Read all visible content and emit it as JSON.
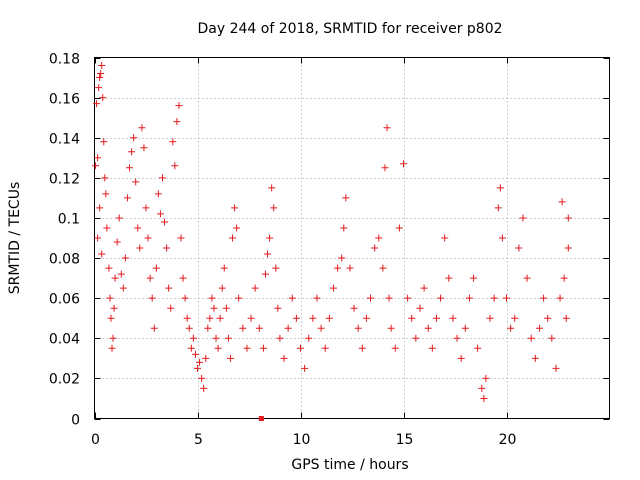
{
  "chart_data": {
    "type": "scatter",
    "title": "Day 244 of 2018, SRMTID for receiver p802",
    "xlabel": "GPS time / hours",
    "ylabel": "SRMTID / TECUs",
    "xlim": [
      0,
      25
    ],
    "ylim": [
      0,
      0.18
    ],
    "xticks": [
      0,
      5,
      10,
      15,
      20
    ],
    "xtick_labels": [
      "0",
      "5",
      "10",
      "15",
      "20"
    ],
    "yticks": [
      0,
      0.02,
      0.04,
      0.06,
      0.08,
      0.1,
      0.12,
      0.14,
      0.16,
      0.18
    ],
    "ytick_labels": [
      "0",
      "0.02",
      "0.04",
      "0.06",
      "0.08",
      "0.1",
      "0.12",
      "0.14",
      "0.16",
      "0.18"
    ],
    "grid": true,
    "legend": "none",
    "marker": "+",
    "marker_color": "#e41a1c",
    "series": [
      {
        "name": "SRMTID",
        "points": [
          [
            0.05,
            0.126
          ],
          [
            0.1,
            0.157
          ],
          [
            0.15,
            0.13
          ],
          [
            0.2,
            0.165
          ],
          [
            0.25,
            0.17
          ],
          [
            0.3,
            0.172
          ],
          [
            0.35,
            0.176
          ],
          [
            0.4,
            0.16
          ],
          [
            0.45,
            0.138
          ],
          [
            0.15,
            0.09
          ],
          [
            0.25,
            0.105
          ],
          [
            0.35,
            0.082
          ],
          [
            0.5,
            0.12
          ],
          [
            0.55,
            0.112
          ],
          [
            0.6,
            0.095
          ],
          [
            0.7,
            0.075
          ],
          [
            0.75,
            0.06
          ],
          [
            0.8,
            0.05
          ],
          [
            0.85,
            0.035
          ],
          [
            0.9,
            0.04
          ],
          [
            0.95,
            0.055
          ],
          [
            1.0,
            0.07
          ],
          [
            1.1,
            0.088
          ],
          [
            1.2,
            0.1
          ],
          [
            1.3,
            0.072
          ],
          [
            1.4,
            0.065
          ],
          [
            1.5,
            0.08
          ],
          [
            1.6,
            0.11
          ],
          [
            1.7,
            0.125
          ],
          [
            1.8,
            0.133
          ],
          [
            1.9,
            0.14
          ],
          [
            2.0,
            0.118
          ],
          [
            2.1,
            0.095
          ],
          [
            2.2,
            0.085
          ],
          [
            2.3,
            0.145
          ],
          [
            2.4,
            0.135
          ],
          [
            2.5,
            0.105
          ],
          [
            2.6,
            0.09
          ],
          [
            2.7,
            0.07
          ],
          [
            2.8,
            0.06
          ],
          [
            2.9,
            0.045
          ],
          [
            3.0,
            0.075
          ],
          [
            3.1,
            0.112
          ],
          [
            3.2,
            0.102
          ],
          [
            3.3,
            0.12
          ],
          [
            3.4,
            0.098
          ],
          [
            3.5,
            0.085
          ],
          [
            3.6,
            0.065
          ],
          [
            3.7,
            0.055
          ],
          [
            3.8,
            0.138
          ],
          [
            3.9,
            0.126
          ],
          [
            4.0,
            0.148
          ],
          [
            4.1,
            0.156
          ],
          [
            4.2,
            0.09
          ],
          [
            4.3,
            0.07
          ],
          [
            4.4,
            0.06
          ],
          [
            4.5,
            0.05
          ],
          [
            4.6,
            0.045
          ],
          [
            4.7,
            0.035
          ],
          [
            4.8,
            0.04
          ],
          [
            4.9,
            0.032
          ],
          [
            5.0,
            0.025
          ],
          [
            5.1,
            0.028
          ],
          [
            5.2,
            0.02
          ],
          [
            5.3,
            0.015
          ],
          [
            5.4,
            0.03
          ],
          [
            5.5,
            0.045
          ],
          [
            5.6,
            0.05
          ],
          [
            5.7,
            0.06
          ],
          [
            5.8,
            0.055
          ],
          [
            5.9,
            0.04
          ],
          [
            6.0,
            0.035
          ],
          [
            6.1,
            0.05
          ],
          [
            6.2,
            0.065
          ],
          [
            6.3,
            0.075
          ],
          [
            6.4,
            0.055
          ],
          [
            6.5,
            0.04
          ],
          [
            6.6,
            0.03
          ],
          [
            6.7,
            0.09
          ],
          [
            6.8,
            0.105
          ],
          [
            6.9,
            0.095
          ],
          [
            7.0,
            0.06
          ],
          [
            7.2,
            0.045
          ],
          [
            7.4,
            0.035
          ],
          [
            7.6,
            0.05
          ],
          [
            7.8,
            0.065
          ],
          [
            8.0,
            0.045
          ],
          [
            8.2,
            0.035
          ],
          [
            8.3,
            0.072
          ],
          [
            8.4,
            0.082
          ],
          [
            8.5,
            0.09
          ],
          [
            8.6,
            0.115
          ],
          [
            8.7,
            0.105
          ],
          [
            8.8,
            0.075
          ],
          [
            8.9,
            0.055
          ],
          [
            9.0,
            0.04
          ],
          [
            9.2,
            0.03
          ],
          [
            9.4,
            0.045
          ],
          [
            9.6,
            0.06
          ],
          [
            9.8,
            0.05
          ],
          [
            10.0,
            0.035
          ],
          [
            10.2,
            0.025
          ],
          [
            10.4,
            0.04
          ],
          [
            10.6,
            0.05
          ],
          [
            10.8,
            0.06
          ],
          [
            11.0,
            0.045
          ],
          [
            11.2,
            0.035
          ],
          [
            11.4,
            0.05
          ],
          [
            11.6,
            0.065
          ],
          [
            11.8,
            0.075
          ],
          [
            12.0,
            0.08
          ],
          [
            12.1,
            0.095
          ],
          [
            12.2,
            0.11
          ],
          [
            12.4,
            0.075
          ],
          [
            12.6,
            0.055
          ],
          [
            12.8,
            0.045
          ],
          [
            13.0,
            0.035
          ],
          [
            13.2,
            0.05
          ],
          [
            13.4,
            0.06
          ],
          [
            13.6,
            0.085
          ],
          [
            13.8,
            0.09
          ],
          [
            14.0,
            0.075
          ],
          [
            14.1,
            0.125
          ],
          [
            14.2,
            0.145
          ],
          [
            14.3,
            0.06
          ],
          [
            14.4,
            0.045
          ],
          [
            14.6,
            0.035
          ],
          [
            14.8,
            0.095
          ],
          [
            15.0,
            0.127
          ],
          [
            15.2,
            0.06
          ],
          [
            15.4,
            0.05
          ],
          [
            15.6,
            0.04
          ],
          [
            15.8,
            0.055
          ],
          [
            16.0,
            0.065
          ],
          [
            16.2,
            0.045
          ],
          [
            16.4,
            0.035
          ],
          [
            16.6,
            0.05
          ],
          [
            16.8,
            0.06
          ],
          [
            17.0,
            0.09
          ],
          [
            17.2,
            0.07
          ],
          [
            17.4,
            0.05
          ],
          [
            17.6,
            0.04
          ],
          [
            17.8,
            0.03
          ],
          [
            18.0,
            0.045
          ],
          [
            18.2,
            0.06
          ],
          [
            18.4,
            0.07
          ],
          [
            18.6,
            0.035
          ],
          [
            18.8,
            0.015
          ],
          [
            18.9,
            0.01
          ],
          [
            19.0,
            0.02
          ],
          [
            19.2,
            0.05
          ],
          [
            19.4,
            0.06
          ],
          [
            19.6,
            0.105
          ],
          [
            19.7,
            0.115
          ],
          [
            19.8,
            0.09
          ],
          [
            20.0,
            0.06
          ],
          [
            20.2,
            0.045
          ],
          [
            20.4,
            0.05
          ],
          [
            20.6,
            0.085
          ],
          [
            20.8,
            0.1
          ],
          [
            21.0,
            0.07
          ],
          [
            21.2,
            0.04
          ],
          [
            21.4,
            0.03
          ],
          [
            21.6,
            0.045
          ],
          [
            21.8,
            0.06
          ],
          [
            22.0,
            0.05
          ],
          [
            22.2,
            0.04
          ],
          [
            22.4,
            0.025
          ],
          [
            22.6,
            0.06
          ],
          [
            22.7,
            0.108
          ],
          [
            22.8,
            0.07
          ],
          [
            22.9,
            0.05
          ],
          [
            23.0,
            0.085
          ],
          [
            23.0,
            0.1
          ]
        ]
      }
    ],
    "outlier_square": [
      8.1,
      0.0
    ]
  }
}
